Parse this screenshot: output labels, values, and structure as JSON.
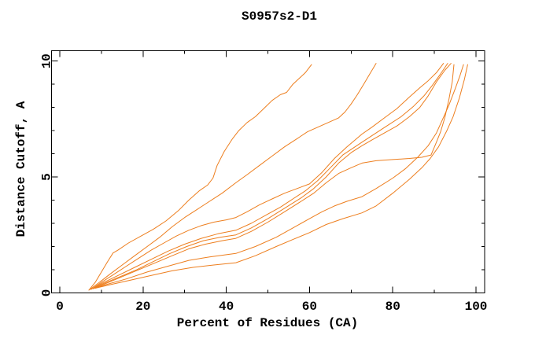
{
  "title": "S0957s2-D1",
  "colors": {
    "curve": "#ED7E1E",
    "axis": "#000000",
    "text": "#000000",
    "background": "#FFFFFF"
  },
  "axes": {
    "x": {
      "label": "Percent of Residues (CA)",
      "min": 0,
      "max": 100,
      "major_ticks": [
        0,
        20,
        40,
        60,
        80,
        100
      ],
      "minor_ticks": [
        10,
        30,
        50,
        70,
        90
      ]
    },
    "y": {
      "label": "Distance Cutoff, A",
      "min": 0,
      "max": 10,
      "major_ticks": [
        0,
        5,
        10
      ],
      "minor_ticks": [
        1,
        2,
        3,
        4,
        6,
        7,
        8,
        9
      ]
    }
  },
  "chart_data": {
    "type": "line",
    "title": "S0957s2-D1",
    "xlabel": "Percent of Residues (CA)",
    "ylabel": "Distance Cutoff, A",
    "xlim": [
      0,
      100
    ],
    "ylim": [
      0,
      10
    ],
    "grid": false,
    "legend": null,
    "series": [
      {
        "name": "curve-1",
        "points": [
          [
            7,
            0.12
          ],
          [
            8.5,
            0.45
          ],
          [
            10,
            0.9
          ],
          [
            11.5,
            1.35
          ],
          [
            12.8,
            1.72
          ],
          [
            14,
            1.85
          ],
          [
            16.5,
            2.15
          ],
          [
            19.5,
            2.45
          ],
          [
            22.5,
            2.75
          ],
          [
            25.5,
            3.1
          ],
          [
            28.5,
            3.55
          ],
          [
            31,
            4.0
          ],
          [
            33.5,
            4.4
          ],
          [
            35.5,
            4.65
          ],
          [
            36.8,
            4.95
          ],
          [
            37.8,
            5.5
          ],
          [
            39.5,
            6.1
          ],
          [
            41.5,
            6.65
          ],
          [
            43,
            7.0
          ],
          [
            45,
            7.35
          ],
          [
            47,
            7.6
          ],
          [
            49,
            7.95
          ],
          [
            51,
            8.3
          ],
          [
            53,
            8.55
          ],
          [
            54.5,
            8.65
          ],
          [
            56,
            9.0
          ],
          [
            57.5,
            9.25
          ],
          [
            59,
            9.5
          ],
          [
            60.5,
            9.85
          ]
        ]
      },
      {
        "name": "curve-2",
        "points": [
          [
            7,
            0.12
          ],
          [
            9.5,
            0.45
          ],
          [
            12,
            0.8
          ],
          [
            15,
            1.2
          ],
          [
            18,
            1.6
          ],
          [
            21,
            2.0
          ],
          [
            24,
            2.4
          ],
          [
            27,
            2.85
          ],
          [
            30,
            3.25
          ],
          [
            33,
            3.6
          ],
          [
            36,
            3.95
          ],
          [
            39,
            4.3
          ],
          [
            42.3,
            4.75
          ],
          [
            45,
            5.1
          ],
          [
            48,
            5.5
          ],
          [
            51,
            5.9
          ],
          [
            54,
            6.3
          ],
          [
            57,
            6.65
          ],
          [
            59.5,
            6.95
          ],
          [
            62,
            7.15
          ],
          [
            64.5,
            7.35
          ],
          [
            67,
            7.55
          ],
          [
            68.5,
            7.8
          ],
          [
            70,
            8.15
          ],
          [
            71.5,
            8.55
          ],
          [
            73,
            9.0
          ],
          [
            74.5,
            9.45
          ],
          [
            76,
            9.9
          ]
        ]
      },
      {
        "name": "curve-3",
        "points": [
          [
            7.5,
            0.15
          ],
          [
            10,
            0.45
          ],
          [
            13,
            0.8
          ],
          [
            16,
            1.15
          ],
          [
            19,
            1.5
          ],
          [
            22,
            1.85
          ],
          [
            25,
            2.15
          ],
          [
            28,
            2.45
          ],
          [
            31,
            2.7
          ],
          [
            34,
            2.9
          ],
          [
            37,
            3.05
          ],
          [
            40,
            3.15
          ],
          [
            42.3,
            3.25
          ],
          [
            45,
            3.5
          ],
          [
            48,
            3.8
          ],
          [
            51,
            4.05
          ],
          [
            54,
            4.3
          ],
          [
            57,
            4.5
          ],
          [
            60,
            4.7
          ],
          [
            63,
            5.2
          ],
          [
            66,
            5.8
          ],
          [
            69,
            6.3
          ],
          [
            72.6,
            6.85
          ],
          [
            75,
            7.15
          ],
          [
            78,
            7.55
          ],
          [
            81,
            7.95
          ],
          [
            84,
            8.45
          ],
          [
            86.5,
            8.85
          ],
          [
            88.5,
            9.15
          ],
          [
            90.5,
            9.5
          ],
          [
            92.2,
            9.9
          ]
        ]
      },
      {
        "name": "curve-4",
        "points": [
          [
            7.5,
            0.15
          ],
          [
            10,
            0.4
          ],
          [
            14,
            0.75
          ],
          [
            18,
            1.1
          ],
          [
            22,
            1.45
          ],
          [
            26,
            1.8
          ],
          [
            30,
            2.1
          ],
          [
            34,
            2.35
          ],
          [
            38,
            2.55
          ],
          [
            42.3,
            2.7
          ],
          [
            46,
            3.0
          ],
          [
            50,
            3.4
          ],
          [
            53,
            3.7
          ],
          [
            56,
            4.05
          ],
          [
            59,
            4.4
          ],
          [
            62,
            4.85
          ],
          [
            65,
            5.4
          ],
          [
            68,
            5.95
          ],
          [
            72.6,
            6.5
          ],
          [
            76,
            6.9
          ],
          [
            79,
            7.25
          ],
          [
            82,
            7.6
          ],
          [
            85,
            8.05
          ],
          [
            87.5,
            8.5
          ],
          [
            89.5,
            8.95
          ],
          [
            91.5,
            9.45
          ],
          [
            93.2,
            9.9
          ]
        ]
      },
      {
        "name": "curve-5",
        "points": [
          [
            8,
            0.18
          ],
          [
            10.5,
            0.4
          ],
          [
            14.5,
            0.7
          ],
          [
            18.5,
            1.0
          ],
          [
            22.5,
            1.35
          ],
          [
            26.5,
            1.7
          ],
          [
            30.5,
            2.0
          ],
          [
            34.5,
            2.25
          ],
          [
            38.5,
            2.4
          ],
          [
            42.3,
            2.5
          ],
          [
            46,
            2.8
          ],
          [
            50,
            3.2
          ],
          [
            54,
            3.65
          ],
          [
            58,
            4.1
          ],
          [
            61,
            4.5
          ],
          [
            64,
            5.0
          ],
          [
            67,
            5.6
          ],
          [
            70,
            6.05
          ],
          [
            72.6,
            6.35
          ],
          [
            75,
            6.6
          ],
          [
            78,
            6.9
          ],
          [
            81,
            7.2
          ],
          [
            84,
            7.6
          ],
          [
            86.5,
            8.0
          ],
          [
            88.5,
            8.5
          ],
          [
            90.5,
            9.1
          ],
          [
            92.5,
            9.6
          ],
          [
            94,
            9.9
          ]
        ]
      },
      {
        "name": "curve-6",
        "points": [
          [
            8,
            0.18
          ],
          [
            11,
            0.4
          ],
          [
            15,
            0.7
          ],
          [
            19,
            1.0
          ],
          [
            23,
            1.3
          ],
          [
            27,
            1.6
          ],
          [
            31,
            1.9
          ],
          [
            35,
            2.1
          ],
          [
            39,
            2.25
          ],
          [
            42.3,
            2.35
          ],
          [
            46,
            2.65
          ],
          [
            50,
            3.05
          ],
          [
            54,
            3.5
          ],
          [
            58,
            3.95
          ],
          [
            61,
            4.3
          ],
          [
            64,
            4.75
          ],
          [
            67,
            5.15
          ],
          [
            70,
            5.4
          ],
          [
            72.6,
            5.6
          ],
          [
            76,
            5.7
          ],
          [
            80,
            5.75
          ],
          [
            84,
            5.8
          ],
          [
            87,
            5.85
          ],
          [
            89.2,
            5.95
          ],
          [
            90.5,
            6.5
          ],
          [
            91.5,
            6.95
          ],
          [
            92.5,
            7.55
          ],
          [
            93.5,
            8.35
          ],
          [
            94.3,
            9.1
          ],
          [
            94.7,
            9.85
          ]
        ]
      },
      {
        "name": "curve-7",
        "points": [
          [
            8.5,
            0.2
          ],
          [
            11,
            0.35
          ],
          [
            16,
            0.6
          ],
          [
            21,
            0.9
          ],
          [
            26,
            1.15
          ],
          [
            31,
            1.4
          ],
          [
            36,
            1.55
          ],
          [
            42.3,
            1.7
          ],
          [
            47,
            2.0
          ],
          [
            52,
            2.4
          ],
          [
            56,
            2.8
          ],
          [
            60,
            3.2
          ],
          [
            63,
            3.5
          ],
          [
            66,
            3.75
          ],
          [
            69,
            3.95
          ],
          [
            72.6,
            4.15
          ],
          [
            76,
            4.5
          ],
          [
            80,
            4.95
          ],
          [
            83,
            5.35
          ],
          [
            86,
            5.85
          ],
          [
            88.5,
            6.35
          ],
          [
            90.5,
            6.9
          ],
          [
            92,
            7.5
          ],
          [
            93.5,
            8.1
          ],
          [
            95,
            8.8
          ],
          [
            96.2,
            9.4
          ],
          [
            97,
            9.85
          ]
        ]
      },
      {
        "name": "curve-8",
        "points": [
          [
            8.5,
            0.2
          ],
          [
            12,
            0.35
          ],
          [
            17,
            0.55
          ],
          [
            22,
            0.75
          ],
          [
            27,
            0.95
          ],
          [
            32,
            1.1
          ],
          [
            37,
            1.2
          ],
          [
            42.3,
            1.3
          ],
          [
            47,
            1.6
          ],
          [
            52,
            2.0
          ],
          [
            56,
            2.3
          ],
          [
            60,
            2.6
          ],
          [
            64,
            2.95
          ],
          [
            68,
            3.2
          ],
          [
            72.6,
            3.45
          ],
          [
            76,
            3.75
          ],
          [
            80,
            4.3
          ],
          [
            84,
            4.9
          ],
          [
            87,
            5.4
          ],
          [
            89,
            5.8
          ],
          [
            91,
            6.3
          ],
          [
            93,
            7.0
          ],
          [
            94.5,
            7.6
          ],
          [
            96,
            8.4
          ],
          [
            97.2,
            9.2
          ],
          [
            98,
            9.85
          ]
        ]
      }
    ]
  }
}
